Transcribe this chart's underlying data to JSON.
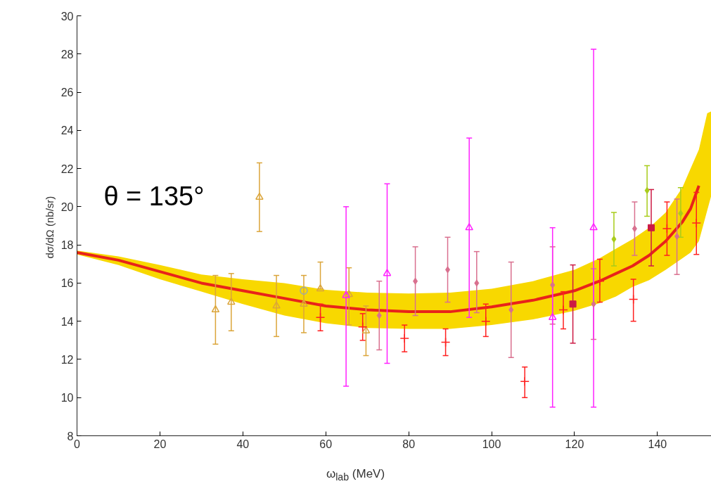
{
  "chart_data": {
    "type": "scatter",
    "xlabel": "ω$_{lab}$ (MeV)",
    "ylabel": "dσ/dΩ  (nb/sr)",
    "annotations": [
      "θ = 135°"
    ],
    "xlim": [
      0,
      153
    ],
    "ylim": [
      8,
      30
    ],
    "xticks": [
      0,
      20,
      40,
      60,
      80,
      100,
      120,
      140
    ],
    "yticks": [
      8,
      10,
      12,
      14,
      16,
      18,
      20,
      22,
      24,
      26,
      28,
      30
    ],
    "grid": false,
    "series": [
      {
        "type": "line",
        "color": "#e8231a",
        "colors": [
          "#f8d800",
          "#f8d800",
          "#f8d800",
          "#f8d800",
          "#f8d800",
          "#f8d800",
          "#f8d800",
          "#f8d800",
          "#f8d800",
          "#f8d800",
          "#f8d800",
          "#f8d800",
          "#f8d800",
          "#f8d800",
          "#f8d800",
          "#f8d800",
          "#f8d800",
          "#f8d800",
          "#f8d800",
          "#f8d800",
          "#f8d800",
          "#f8d800",
          "#f8d800"
        ],
        "marker": "none",
        "line_style": "solid",
        "x": [
          0,
          10,
          20,
          30,
          40,
          50,
          60,
          70,
          80,
          90,
          100,
          110,
          120,
          126,
          130,
          134,
          138,
          142,
          146,
          148,
          150,
          152,
          153
        ],
        "values": [
          17.6,
          17.2,
          16.6,
          16.0,
          15.6,
          15.2,
          14.8,
          14.6,
          14.5,
          14.5,
          14.75,
          15.1,
          15.6,
          16.1,
          16.5,
          16.9,
          17.45,
          18.2,
          19.2,
          19.9,
          21.1,
          null,
          null
        ],
        "lower": [
          17.5,
          16.95,
          16.2,
          15.55,
          14.9,
          14.3,
          13.9,
          13.65,
          13.6,
          13.6,
          13.8,
          14.1,
          14.55,
          14.95,
          15.3,
          15.8,
          16.15,
          16.7,
          17.3,
          17.6,
          18.2,
          19.8,
          20.6
        ],
        "upper": [
          17.7,
          17.4,
          16.95,
          16.45,
          16.2,
          16.0,
          15.65,
          15.5,
          15.45,
          15.5,
          15.7,
          16.1,
          16.7,
          17.3,
          17.8,
          18.3,
          18.9,
          19.7,
          21.0,
          22.0,
          23.0,
          24.9,
          25.0
        ]
      },
      {
        "color": "#dba53a",
        "marker": "triangle",
        "x": [
          33.4,
          37.2,
          44.0,
          48.1,
          54.7,
          58.7,
          65.6,
          69.7
        ],
        "values": [
          14.6,
          15.0,
          20.5,
          14.8,
          14.9,
          15.7,
          15.4,
          13.5
        ],
        "errors": [
          [
            12.8,
            16.4
          ],
          [
            13.5,
            16.5
          ],
          [
            18.7,
            22.3
          ],
          [
            13.2,
            16.4
          ],
          [
            13.4,
            16.4
          ],
          [
            15.7,
            17.1
          ],
          [
            13.8,
            16.8
          ],
          [
            12.2,
            14.8
          ]
        ]
      },
      {
        "color": "#9aa8b0",
        "marker": "circle",
        "x": [
          54.7
        ],
        "values": [
          15.6
        ]
      },
      {
        "color": "#ff2020",
        "marker": "cross",
        "x": [
          58.7,
          68.9,
          79.0,
          88.9,
          98.6,
          108.0,
          117.3,
          126.1,
          134.2,
          142.3,
          149.4
        ],
        "values": [
          14.2,
          13.7,
          13.1,
          12.9,
          14.0,
          10.85,
          14.6,
          16.1,
          15.15,
          18.85,
          19.15
        ],
        "errors": [
          [
            13.5,
            14.9
          ],
          [
            13.0,
            14.4
          ],
          [
            12.4,
            13.8
          ],
          [
            12.2,
            13.6
          ],
          [
            13.2,
            14.9
          ],
          [
            10.0,
            11.6
          ],
          [
            13.6,
            15.55
          ],
          [
            15.0,
            17.25
          ],
          [
            14.0,
            16.2
          ],
          [
            17.45,
            20.25
          ],
          [
            17.5,
            20.75
          ]
        ]
      },
      {
        "color": "#cc1a44",
        "marker": "square",
        "x": [
          119.6,
          138.5
        ],
        "values": [
          14.9,
          18.9
        ],
        "errors": [
          [
            12.85,
            16.95
          ],
          [
            16.9,
            20.9
          ]
        ]
      },
      {
        "color": "#d9708f",
        "marker": "diamond",
        "x": [
          72.9,
          81.6,
          89.4,
          96.4,
          104.7,
          114.7,
          124.6,
          134.5,
          144.7
        ],
        "values": [
          14.3,
          16.1,
          16.7,
          16.0,
          14.6,
          15.9,
          14.9,
          18.85,
          18.45
        ],
        "errors": [
          [
            12.5,
            16.1
          ],
          [
            14.3,
            17.9
          ],
          [
            15.0,
            18.4
          ],
          [
            14.45,
            17.65
          ],
          [
            12.1,
            17.1
          ],
          [
            13.85,
            17.9
          ],
          [
            13.05,
            16.75
          ],
          [
            17.45,
            20.25
          ],
          [
            16.45,
            20.4
          ]
        ]
      },
      {
        "color": "#ff22ff",
        "marker": "triangle",
        "x": [
          64.9,
          74.8,
          94.6,
          114.7,
          124.6
        ],
        "values": [
          15.35,
          16.5,
          18.9,
          14.2,
          18.9
        ],
        "errors": [
          [
            10.6,
            20.0
          ],
          [
            11.8,
            21.2
          ],
          [
            14.2,
            23.6
          ],
          [
            9.5,
            18.9
          ],
          [
            9.5,
            28.25
          ]
        ]
      },
      {
        "color": "#a8cc1a",
        "marker": "diamond",
        "x": [
          129.5,
          137.5,
          145.6
        ],
        "values": [
          18.3,
          20.85,
          19.65
        ],
        "errors": [
          [
            16.9,
            19.7
          ],
          [
            19.5,
            22.15
          ],
          [
            18.4,
            21.0
          ]
        ]
      }
    ]
  }
}
